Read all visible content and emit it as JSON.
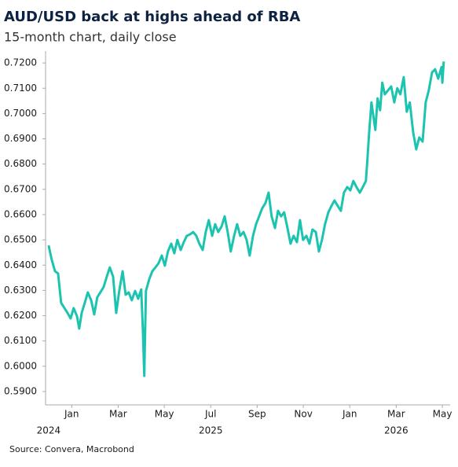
{
  "chart_data": {
    "type": "line",
    "title": "AUD/USD back at highs ahead of RBA",
    "subtitle": "15-month chart, daily close",
    "source": "Source: Convera, Macrobond",
    "color": "#1cc4b0",
    "xlim": [
      2024.906,
      2026.361
    ],
    "ylim": [
      0.5847,
      0.7247
    ],
    "xticks": [
      {
        "value": 2025.0,
        "label": "Jan"
      },
      {
        "value": 2025.167,
        "label": "Mar"
      },
      {
        "value": 2025.333,
        "label": "May"
      },
      {
        "value": 2025.5,
        "label": "Jul"
      },
      {
        "value": 2025.667,
        "label": "Sep"
      },
      {
        "value": 2025.833,
        "label": "Nov"
      },
      {
        "value": 2026.0,
        "label": "Jan"
      },
      {
        "value": 2026.167,
        "label": "Mar"
      },
      {
        "value": 2026.333,
        "label": "May"
      }
    ],
    "year_ticks": [
      {
        "value": 2024.917,
        "label": "2024"
      },
      {
        "value": 2025.5,
        "label": "2025"
      },
      {
        "value": 2026.167,
        "label": "2026"
      }
    ],
    "yticks": [
      {
        "value": 0.59,
        "label": "0.5900"
      },
      {
        "value": 0.6,
        "label": "0.6000"
      },
      {
        "value": 0.61,
        "label": "0.6100"
      },
      {
        "value": 0.62,
        "label": "0.6200"
      },
      {
        "value": 0.63,
        "label": "0.6300"
      },
      {
        "value": 0.64,
        "label": "0.6400"
      },
      {
        "value": 0.65,
        "label": "0.6500"
      },
      {
        "value": 0.66,
        "label": "0.6600"
      },
      {
        "value": 0.67,
        "label": "0.6700"
      },
      {
        "value": 0.68,
        "label": "0.6800"
      },
      {
        "value": 0.69,
        "label": "0.6900"
      },
      {
        "value": 0.7,
        "label": "0.7000"
      },
      {
        "value": 0.71,
        "label": "0.7100"
      },
      {
        "value": 0.72,
        "label": "0.7200"
      }
    ],
    "x": [
      2024.917,
      2024.928,
      2024.94,
      2024.951,
      2024.962,
      2024.974,
      2024.985,
      2024.996,
      2025.007,
      2025.019,
      2025.027,
      2025.036,
      2025.047,
      2025.058,
      2025.07,
      2025.081,
      2025.092,
      2025.103,
      2025.115,
      2025.126,
      2025.137,
      2025.149,
      2025.16,
      2025.171,
      2025.183,
      2025.194,
      2025.205,
      2025.216,
      2025.228,
      2025.239,
      2025.25,
      2025.256,
      2025.261,
      2025.267,
      2025.279,
      2025.29,
      2025.301,
      2025.312,
      2025.324,
      2025.335,
      2025.346,
      2025.358,
      2025.369,
      2025.38,
      2025.392,
      2025.403,
      2025.414,
      2025.426,
      2025.437,
      2025.448,
      2025.459,
      2025.471,
      2025.482,
      2025.493,
      2025.505,
      2025.516,
      2025.527,
      2025.539,
      2025.55,
      2025.561,
      2025.572,
      2025.584,
      2025.595,
      2025.606,
      2025.618,
      2025.629,
      2025.64,
      2025.652,
      2025.663,
      2025.674,
      2025.685,
      2025.697,
      2025.708,
      2025.719,
      2025.731,
      2025.742,
      2025.753,
      2025.764,
      2025.776,
      2025.787,
      2025.798,
      2025.81,
      2025.821,
      2025.832,
      2025.844,
      2025.855,
      2025.866,
      2025.878,
      2025.889,
      2025.9,
      2025.911,
      2025.923,
      2025.934,
      2025.945,
      2025.957,
      2025.968,
      2025.979,
      2025.991,
      2026.002,
      2026.013,
      2026.024,
      2026.036,
      2026.047,
      2026.058,
      2026.064,
      2026.069,
      2026.078,
      2026.086,
      2026.092,
      2026.1,
      2026.109,
      2026.117,
      2026.126,
      2026.137,
      2026.149,
      2026.16,
      2026.171,
      2026.182,
      2026.194,
      2026.205,
      2026.216,
      2026.228,
      2026.239,
      2026.25,
      2026.262,
      2026.273,
      2026.284,
      2026.296,
      2026.307,
      2026.318,
      2026.33,
      2026.333,
      2026.338
    ],
    "values": [
      0.6478,
      0.6422,
      0.6376,
      0.6367,
      0.6251,
      0.623,
      0.6211,
      0.6189,
      0.623,
      0.6198,
      0.6149,
      0.6211,
      0.6251,
      0.6292,
      0.6261,
      0.6205,
      0.6273,
      0.6292,
      0.6314,
      0.6354,
      0.6391,
      0.6354,
      0.6211,
      0.6298,
      0.6376,
      0.6283,
      0.6292,
      0.6261,
      0.6298,
      0.6267,
      0.6304,
      0.6142,
      0.5962,
      0.6298,
      0.6345,
      0.6376,
      0.6391,
      0.6407,
      0.6438,
      0.6398,
      0.6454,
      0.6485,
      0.6447,
      0.65,
      0.646,
      0.6491,
      0.6516,
      0.6522,
      0.6531,
      0.6516,
      0.6485,
      0.646,
      0.6531,
      0.6578,
      0.6516,
      0.6562,
      0.6531,
      0.6553,
      0.6593,
      0.6531,
      0.6454,
      0.6516,
      0.6562,
      0.6516,
      0.6531,
      0.65,
      0.6438,
      0.6516,
      0.6562,
      0.6593,
      0.6625,
      0.6646,
      0.6687,
      0.6593,
      0.6547,
      0.6615,
      0.6593,
      0.6609,
      0.6547,
      0.6485,
      0.6516,
      0.6491,
      0.6578,
      0.65,
      0.6516,
      0.6485,
      0.6541,
      0.6531,
      0.6454,
      0.65,
      0.6562,
      0.6609,
      0.6634,
      0.6656,
      0.6634,
      0.6615,
      0.6687,
      0.6709,
      0.6696,
      0.6733,
      0.6709,
      0.6687,
      0.6709,
      0.6733,
      0.6827,
      0.6914,
      0.7044,
      0.6982,
      0.6935,
      0.706,
      0.7013,
      0.7122,
      0.7076,
      0.7091,
      0.7107,
      0.7044,
      0.71,
      0.7076,
      0.7144,
      0.7007,
      0.7044,
      0.6926,
      0.6858,
      0.6905,
      0.6889,
      0.7044,
      0.7091,
      0.7163,
      0.7175,
      0.7138,
      0.7184,
      0.7122,
      0.7206
    ]
  }
}
